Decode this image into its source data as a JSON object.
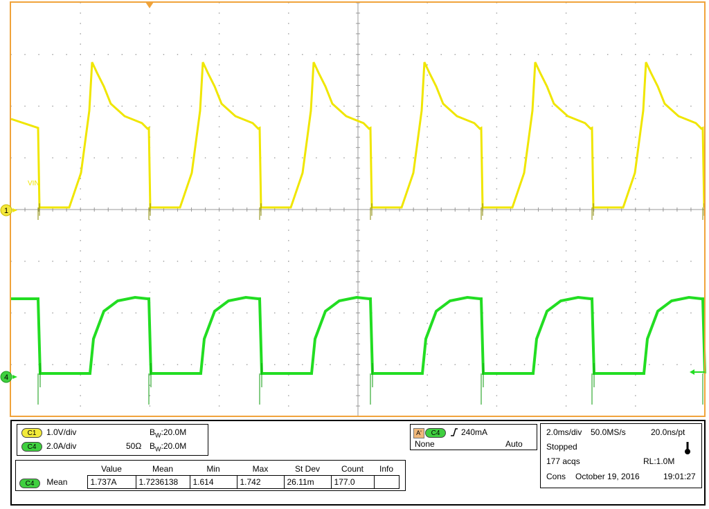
{
  "colors": {
    "frame": "#f0a33a",
    "grid": "#9a9a9a",
    "ch1": "#f0e600",
    "ch4": "#22dd22",
    "ch1_marker": "#f4e83a",
    "ch4_marker": "#3fd03f",
    "trigger_marker": "#f0a33a"
  },
  "screen": {
    "ch1_marker": "1",
    "ch4_marker": "4",
    "ch1_trace_label": "VIN"
  },
  "channels": {
    "c1": {
      "badge": "C1",
      "scale": "1.0V/div",
      "bw": "20.0M",
      "bw_prefix": "B",
      "bw_sub": "W",
      "bw_suffix": ":20.0M"
    },
    "c4": {
      "badge": "C4",
      "scale": "2.0A/div",
      "impedance": "50Ω",
      "bw": "20.0M",
      "bw_prefix": "B",
      "bw_sub": "W",
      "bw_suffix": ":20.0M"
    }
  },
  "trigger": {
    "mode_badge": "A'",
    "source_badge": "C4",
    "slope_icon": "rising-edge-icon",
    "level": "240mA",
    "coupling": "None",
    "sweep": "Auto"
  },
  "acquisition": {
    "timebase": "2.0ms/div",
    "sample_rate": "50.0MS/s",
    "resolution": "20.0ns/pt",
    "state": "Stopped",
    "state_icon": "thermometer-icon",
    "acqs": "177 acqs",
    "record_length": "RL:1.0M",
    "mode": "Cons",
    "date": "October 19, 2016",
    "time": "19:01:27"
  },
  "measurements": {
    "headers": [
      "Value",
      "Mean",
      "Min",
      "Max",
      "St Dev",
      "Count",
      "Info"
    ],
    "rows": [
      {
        "badge": "C4",
        "name": "Mean",
        "value": "1.737A",
        "mean": "1.7236138",
        "min": "1.614",
        "max": "1.742",
        "stdev": "26.11m",
        "count": "177.0",
        "info": ""
      }
    ]
  }
}
